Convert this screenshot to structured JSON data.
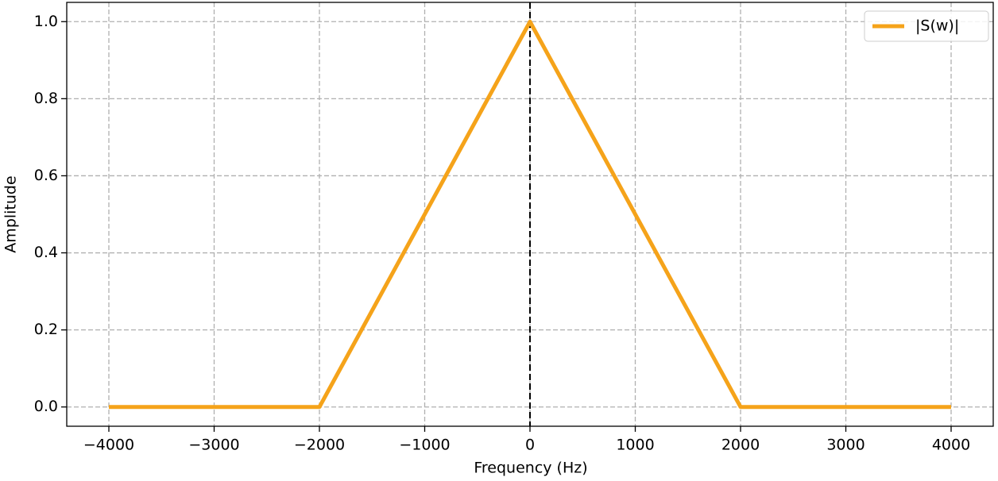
{
  "chart_data": {
    "type": "line",
    "x_label": "Frequency (Hz)",
    "y_label": "Amplitude",
    "x": [
      -4000,
      -2000,
      0,
      2000,
      4000
    ],
    "series": [
      {
        "name": "|S(w)|",
        "color": "#f5a31a",
        "values": [
          0,
          0,
          1,
          0,
          0
        ]
      }
    ],
    "xlim": [
      -4400,
      4400
    ],
    "xticks": [
      {
        "value": -4000,
        "label": "−4000"
      },
      {
        "value": -3000,
        "label": "−3000"
      },
      {
        "value": -2000,
        "label": "−2000"
      },
      {
        "value": -1000,
        "label": "−1000"
      },
      0,
      1000,
      2000,
      3000,
      4000
    ],
    "ylim": [
      -0.05,
      1.05
    ],
    "yticks": [
      {
        "value": 0,
        "label": "0.0"
      },
      0.2,
      0.4,
      0.6,
      0.8,
      {
        "value": 1,
        "label": "1.0"
      }
    ],
    "vline": 0,
    "grid": true,
    "legend": "upper right"
  }
}
